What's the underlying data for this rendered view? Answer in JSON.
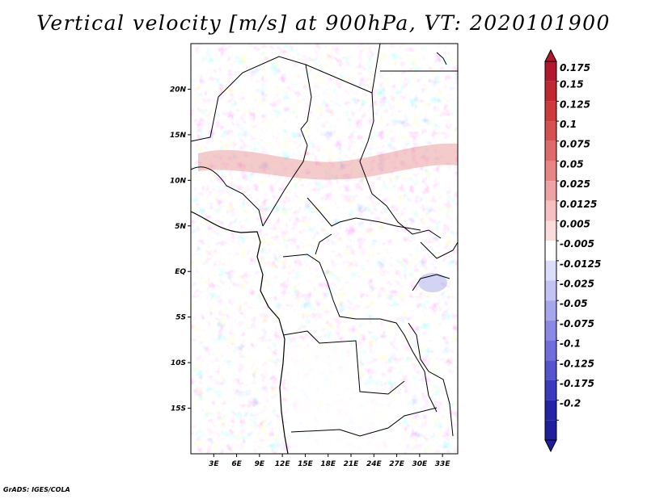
{
  "title": "Vertical velocity [m/s] at 900hPa, VT: 2020101900",
  "credit": "GrADS: IGES/COLA",
  "map": {
    "field": "vertical velocity",
    "level": "900hPa",
    "valid_time": "2020101900",
    "lon_range": [
      0,
      35
    ],
    "lat_range": [
      -20,
      25
    ],
    "lon_ticks": [
      {
        "value": 3,
        "label": "3E"
      },
      {
        "value": 6,
        "label": "6E"
      },
      {
        "value": 9,
        "label": "9E"
      },
      {
        "value": 12,
        "label": "12E"
      },
      {
        "value": 15,
        "label": "15E"
      },
      {
        "value": 18,
        "label": "18E"
      },
      {
        "value": 21,
        "label": "21E"
      },
      {
        "value": 24,
        "label": "24E"
      },
      {
        "value": 27,
        "label": "27E"
      },
      {
        "value": 30,
        "label": "30E"
      },
      {
        "value": 33,
        "label": "33E"
      }
    ],
    "lat_ticks": [
      {
        "value": 20,
        "label": "20N"
      },
      {
        "value": 15,
        "label": "15N"
      },
      {
        "value": 10,
        "label": "10N"
      },
      {
        "value": 5,
        "label": "5N"
      },
      {
        "value": 0,
        "label": "EQ"
      },
      {
        "value": -5,
        "label": "5S"
      },
      {
        "value": -10,
        "label": "10S"
      },
      {
        "value": -15,
        "label": "15S"
      }
    ]
  },
  "colorbar": {
    "levels": [
      {
        "label": "0.175",
        "color": "#b2182b"
      },
      {
        "label": "0.15",
        "color": "#c0272f"
      },
      {
        "label": "0.125",
        "color": "#cc3a3a"
      },
      {
        "label": "0.1",
        "color": "#d65050"
      },
      {
        "label": "0.075",
        "color": "#e06a6a"
      },
      {
        "label": "0.05",
        "color": "#e98585"
      },
      {
        "label": "0.025",
        "color": "#f0a2a2"
      },
      {
        "label": "0.0125",
        "color": "#f6c0c0"
      },
      {
        "label": "0.005",
        "color": "#fbdcdc"
      },
      {
        "label": "-0.005",
        "color": "#ffffff"
      },
      {
        "label": "-0.0125",
        "color": "#dcdcfb"
      },
      {
        "label": "-0.025",
        "color": "#c2c2f5"
      },
      {
        "label": "-0.05",
        "color": "#a6a6ee"
      },
      {
        "label": "-0.075",
        "color": "#8a8ae6"
      },
      {
        "label": "-0.1",
        "color": "#6e6edc"
      },
      {
        "label": "-0.125",
        "color": "#5454cf"
      },
      {
        "label": "-0.175",
        "color": "#3a3abf"
      },
      {
        "label": "-0.2",
        "color": "#2323a8"
      }
    ],
    "top_color": "#b2182b",
    "bottom_color": "#1f1f9e"
  }
}
